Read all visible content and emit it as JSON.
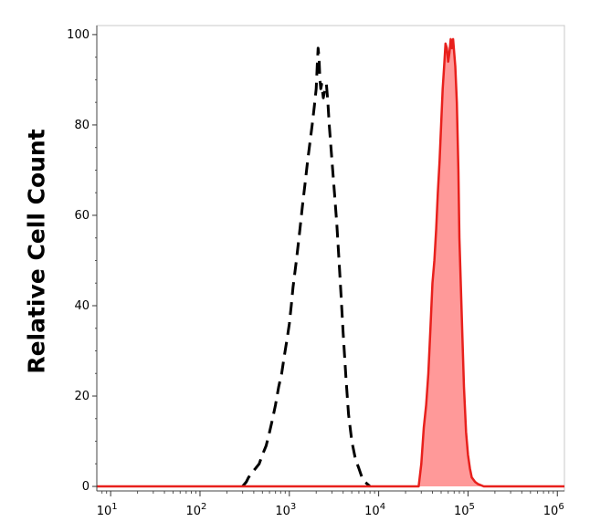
{
  "chart_data": {
    "type": "area",
    "title": "",
    "xlabel": "",
    "ylabel": "Relative Cell Count",
    "xscale": "log",
    "xlim": [
      7,
      1200000
    ],
    "ylim": [
      -1,
      102
    ],
    "y_ticks": [
      {
        "value": 0,
        "label": "0"
      },
      {
        "value": 20,
        "label": "20"
      },
      {
        "value": 40,
        "label": "40"
      },
      {
        "value": 60,
        "label": "60"
      },
      {
        "value": 80,
        "label": "80"
      },
      {
        "value": 100,
        "label": "100"
      }
    ],
    "x_ticks": [
      {
        "value": 10,
        "base": "10",
        "exp": "1"
      },
      {
        "value": 100,
        "base": "10",
        "exp": "2"
      },
      {
        "value": 1000,
        "base": "10",
        "exp": "3"
      },
      {
        "value": 10000,
        "base": "10",
        "exp": "4"
      },
      {
        "value": 100000,
        "base": "10",
        "exp": "5"
      },
      {
        "value": 1000000,
        "base": "10",
        "exp": "6"
      }
    ],
    "grid": false,
    "legend": "none",
    "series": [
      {
        "style": "dashed",
        "color": "#000000",
        "fill": "none",
        "x": [
          300,
          330,
          350,
          380,
          420,
          460,
          500,
          550,
          600,
          650,
          700,
          760,
          820,
          880,
          950,
          1000,
          1050,
          1100,
          1200,
          1300,
          1400,
          1500,
          1600,
          1700,
          1800,
          1900,
          2000,
          2050,
          2100,
          2150,
          2200,
          2250,
          2300,
          2400,
          2500,
          2600,
          2700,
          2800,
          2900,
          3000,
          3200,
          3400,
          3600,
          3800,
          4000,
          4300,
          4600,
          5000,
          5500,
          6000,
          6500,
          7000,
          7500,
          8000
        ],
        "y": [
          0,
          1,
          2,
          3,
          4,
          5,
          7,
          9,
          12,
          15,
          18,
          22,
          25,
          29,
          33,
          36,
          40,
          44,
          50,
          56,
          62,
          67,
          72,
          76,
          80,
          84,
          88,
          93,
          97,
          95,
          90,
          88,
          89,
          86,
          88,
          89,
          85,
          80,
          76,
          72,
          65,
          58,
          50,
          42,
          34,
          24,
          16,
          10,
          6,
          4,
          2,
          1,
          0.5,
          0
        ]
      },
      {
        "style": "solid",
        "color": "#e8201c",
        "fill": "#ff9999",
        "x": [
          7,
          100,
          1000,
          10000,
          25000,
          28000,
          30000,
          32000,
          34000,
          36000,
          38000,
          40000,
          42000,
          44000,
          46000,
          48000,
          50000,
          52000,
          54000,
          56000,
          58000,
          60000,
          62000,
          64000,
          66000,
          68000,
          70000,
          72000,
          75000,
          78000,
          80000,
          83000,
          86000,
          90000,
          95000,
          100000,
          105000,
          110000,
          120000,
          130000,
          150000,
          200000,
          1000000,
          1200000
        ],
        "y": [
          0,
          0,
          0,
          0,
          0,
          0,
          5,
          13,
          18,
          25,
          35,
          45,
          50,
          57,
          65,
          72,
          80,
          88,
          93,
          98,
          97,
          94,
          96,
          99,
          97,
          99,
          96,
          93,
          85,
          70,
          55,
          45,
          35,
          22,
          12,
          7,
          4,
          2,
          1,
          0.5,
          0,
          0,
          0,
          0
        ]
      }
    ]
  }
}
